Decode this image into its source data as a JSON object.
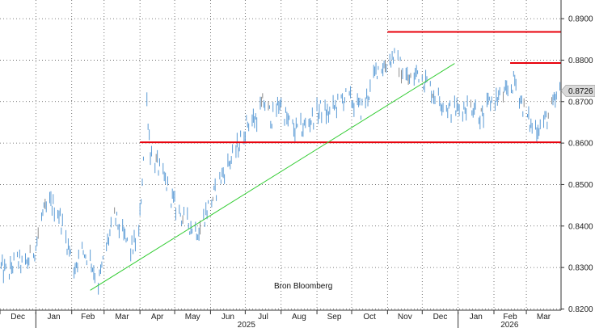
{
  "chart_data": {
    "type": "line",
    "style": "daily high-low bars",
    "series_color": "#5b9bd5",
    "flat_bar_color": "#8c8c8c",
    "months": [
      "Dec",
      "Jan",
      "Feb",
      "Mar",
      "Apr",
      "May",
      "Jun",
      "Jul",
      "Aug",
      "Sep",
      "Oct",
      "Nov",
      "Dec",
      "Jan",
      "Feb",
      "Mar"
    ],
    "years": [
      "2025",
      "2026"
    ],
    "y_ticks": [
      "0.8200",
      "0.8300",
      "0.8400",
      "0.8500",
      "0.8600",
      "0.8700",
      "0.8800",
      "0.8900"
    ],
    "ylim": [
      0.8197,
      0.8945
    ],
    "grid": true,
    "grid_style": "dotted",
    "y_axis_position": "right",
    "last_value": 0.8726,
    "last_value_label": "0.8726",
    "source_label": "Bron Bloomberg",
    "x_start": "2024-12-01",
    "x_end": "2026-03-31",
    "points": [
      [
        "2024-12-01",
        0.83
      ],
      [
        "2024-12-08",
        0.8285
      ],
      [
        "2024-12-15",
        0.832
      ],
      [
        "2024-12-22",
        0.83
      ],
      [
        "2025-01-01",
        0.835
      ],
      [
        "2025-01-06",
        0.842
      ],
      [
        "2025-01-13",
        0.8455
      ],
      [
        "2025-01-20",
        0.844
      ],
      [
        "2025-01-27",
        0.837
      ],
      [
        "2025-02-03",
        0.83
      ],
      [
        "2025-02-10",
        0.834
      ],
      [
        "2025-02-17",
        0.832
      ],
      [
        "2025-02-24",
        0.826
      ],
      [
        "2025-03-03",
        0.835
      ],
      [
        "2025-03-10",
        0.842
      ],
      [
        "2025-03-17",
        0.838
      ],
      [
        "2025-03-24",
        0.834
      ],
      [
        "2025-03-31",
        0.838
      ],
      [
        "2025-04-07",
        0.87
      ],
      [
        "2025-04-10",
        0.858
      ],
      [
        "2025-04-17",
        0.854
      ],
      [
        "2025-04-24",
        0.85
      ],
      [
        "2025-05-01",
        0.845
      ],
      [
        "2025-05-08",
        0.842
      ],
      [
        "2025-05-15",
        0.84
      ],
      [
        "2025-05-22",
        0.839
      ],
      [
        "2025-05-29",
        0.844
      ],
      [
        "2025-06-05",
        0.848
      ],
      [
        "2025-06-12",
        0.853
      ],
      [
        "2025-06-19",
        0.856
      ],
      [
        "2025-06-26",
        0.86
      ],
      [
        "2025-07-03",
        0.865
      ],
      [
        "2025-07-10",
        0.866
      ],
      [
        "2025-07-17",
        0.87
      ],
      [
        "2025-07-24",
        0.866
      ],
      [
        "2025-07-31",
        0.87
      ],
      [
        "2025-08-07",
        0.865
      ],
      [
        "2025-08-14",
        0.863
      ],
      [
        "2025-08-21",
        0.864
      ],
      [
        "2025-08-28",
        0.866
      ],
      [
        "2025-09-04",
        0.868
      ],
      [
        "2025-09-11",
        0.867
      ],
      [
        "2025-09-18",
        0.869
      ],
      [
        "2025-09-25",
        0.871
      ],
      [
        "2025-10-02",
        0.87
      ],
      [
        "2025-10-09",
        0.868
      ],
      [
        "2025-10-16",
        0.872
      ],
      [
        "2025-10-23",
        0.878
      ],
      [
        "2025-10-30",
        0.879
      ],
      [
        "2025-11-06",
        0.881
      ],
      [
        "2025-11-13",
        0.878
      ],
      [
        "2025-11-20",
        0.875
      ],
      [
        "2025-11-27",
        0.877
      ],
      [
        "2025-12-04",
        0.875
      ],
      [
        "2025-12-11",
        0.872
      ],
      [
        "2025-12-18",
        0.87
      ],
      [
        "2025-12-25",
        0.868
      ],
      [
        "2026-01-01",
        0.868
      ],
      [
        "2026-01-08",
        0.869
      ],
      [
        "2026-01-15",
        0.869
      ],
      [
        "2026-01-22",
        0.866
      ],
      [
        "2026-01-29",
        0.87
      ],
      [
        "2026-02-05",
        0.871
      ],
      [
        "2026-02-12",
        0.872
      ],
      [
        "2026-02-19",
        0.875
      ],
      [
        "2026-02-26",
        0.869
      ],
      [
        "2026-03-05",
        0.864
      ],
      [
        "2026-03-12",
        0.864
      ],
      [
        "2026-03-19",
        0.866
      ],
      [
        "2026-03-26",
        0.87
      ],
      [
        "2026-03-31",
        0.8726
      ]
    ],
    "annotations": [
      {
        "type": "hline",
        "color": "#e8000b",
        "y": 0.8602,
        "x_from": "2025-04-01",
        "x_to": "2026-03-31"
      },
      {
        "type": "hline",
        "color": "#e8000b",
        "y": 0.8868,
        "x_from": "2025-11-01",
        "x_to": "2026-03-31"
      },
      {
        "type": "hline",
        "color": "#e8000b",
        "y": 0.8793,
        "x_from": "2026-02-15",
        "x_to": "2026-03-31"
      },
      {
        "type": "trendline",
        "color": "#33cc33",
        "from": [
          "2025-02-17",
          0.8245
        ],
        "to": [
          "2025-12-29",
          0.8792
        ]
      }
    ]
  }
}
